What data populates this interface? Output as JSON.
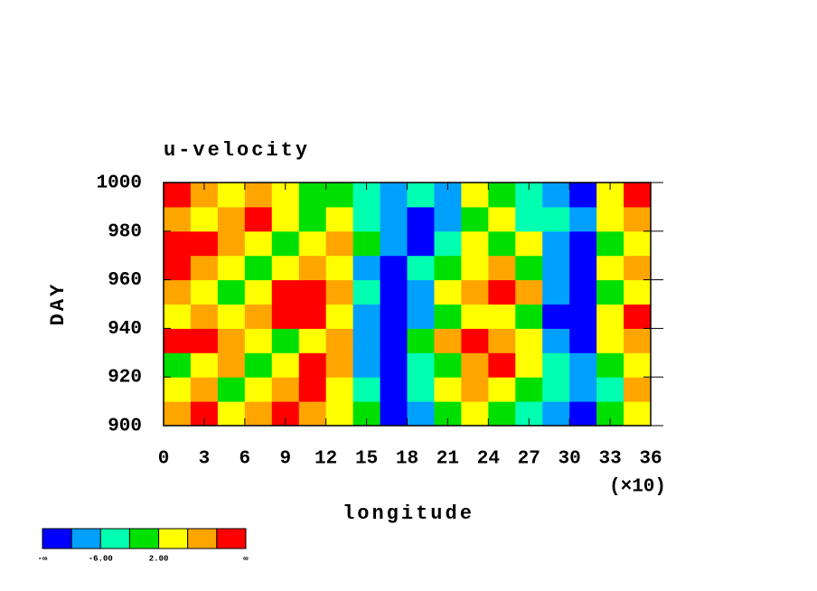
{
  "chart_data": {
    "type": "heatmap",
    "title": "u-velocity",
    "xlabel": "longitude",
    "ylabel": "DAY",
    "xscale_note": "(×10)",
    "xlim": [
      0,
      36
    ],
    "xticks": [
      0,
      3,
      6,
      9,
      12,
      15,
      18,
      21,
      24,
      27,
      30,
      33,
      36
    ],
    "ylim": [
      900,
      1000
    ],
    "yticks": [
      900,
      920,
      940,
      960,
      980,
      1000
    ],
    "x": [
      1,
      3,
      5,
      7,
      9,
      11,
      13,
      15,
      17,
      19,
      21,
      23,
      25,
      27,
      29,
      31,
      33,
      35
    ],
    "y": [
      905,
      915,
      925,
      935,
      945,
      955,
      965,
      975,
      985,
      995
    ],
    "z": [
      [
        8,
        12,
        4,
        8,
        12,
        8,
        4,
        0,
        -12,
        -8,
        0,
        4,
        0,
        -4,
        -8,
        -12,
        0,
        4
      ],
      [
        4,
        8,
        0,
        4,
        8,
        12,
        4,
        -4,
        -12,
        -4,
        4,
        8,
        4,
        0,
        -4,
        -8,
        -4,
        8
      ],
      [
        0,
        4,
        8,
        0,
        4,
        12,
        8,
        -8,
        -12,
        -4,
        0,
        8,
        12,
        4,
        -4,
        -8,
        0,
        4
      ],
      [
        12,
        12,
        8,
        4,
        0,
        4,
        8,
        -8,
        -12,
        0,
        8,
        12,
        8,
        4,
        -8,
        -12,
        4,
        8
      ],
      [
        4,
        8,
        4,
        8,
        12,
        12,
        4,
        -8,
        -12,
        -8,
        0,
        4,
        4,
        0,
        -12,
        -12,
        4,
        12
      ],
      [
        8,
        4,
        0,
        4,
        12,
        12,
        8,
        -4,
        -12,
        -8,
        4,
        8,
        12,
        8,
        -8,
        -12,
        0,
        4
      ],
      [
        12,
        8,
        4,
        0,
        4,
        8,
        4,
        -8,
        -12,
        -4,
        0,
        4,
        8,
        0,
        -8,
        -12,
        4,
        8
      ],
      [
        12,
        12,
        8,
        4,
        0,
        4,
        8,
        0,
        -8,
        -12,
        -4,
        4,
        0,
        4,
        -8,
        -12,
        0,
        4
      ],
      [
        8,
        4,
        8,
        12,
        4,
        0,
        4,
        -4,
        -8,
        -12,
        -8,
        0,
        4,
        -4,
        -4,
        -8,
        4,
        8
      ],
      [
        12,
        8,
        4,
        8,
        4,
        0,
        0,
        -4,
        -8,
        -4,
        -8,
        4,
        0,
        -4,
        -8,
        -12,
        4,
        12
      ]
    ],
    "colorbar": {
      "colors": [
        "#0000ff",
        "#00a0ff",
        "#00ffb0",
        "#00e000",
        "#ffff00",
        "#ffa500",
        "#ff0000"
      ],
      "levels": [
        -10,
        -6,
        -2,
        2,
        6,
        10
      ],
      "labels": [
        "-∞",
        "-6.00",
        "2.00",
        "∞"
      ]
    }
  }
}
